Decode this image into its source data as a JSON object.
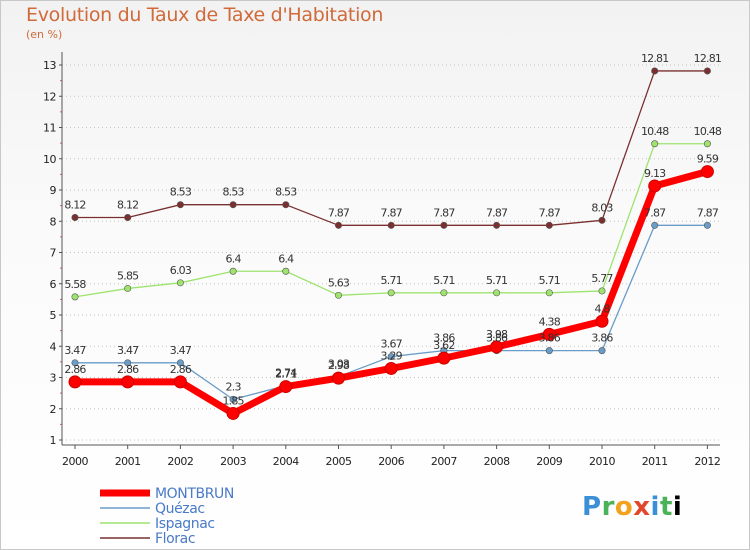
{
  "chart_data": {
    "type": "line",
    "title": "Evolution du Taux de Taxe d'Habitation",
    "subtitle": "(en %)",
    "x": [
      "2000",
      "2001",
      "2002",
      "2003",
      "2004",
      "2005",
      "2006",
      "2007",
      "2008",
      "2009",
      "2010",
      "2011",
      "2012"
    ],
    "ylim": [
      1,
      13
    ],
    "yticks": [
      "1",
      "2",
      "3",
      "4",
      "5",
      "6",
      "7",
      "8",
      "9",
      "10",
      "11",
      "12",
      "13"
    ],
    "grid": "horizontal-dotted",
    "legend_position": "bottom-left",
    "series": [
      {
        "name": "MONTBRUN",
        "color": "#ff0000",
        "values": [
          2.86,
          2.86,
          2.86,
          1.85,
          2.71,
          2.98,
          3.29,
          3.62,
          3.98,
          4.38,
          4.8,
          9.13,
          9.59
        ],
        "labels": [
          "2.86",
          "2.86",
          "2.86",
          "1.85",
          "2.71",
          "2.98",
          "3.29",
          "3.62",
          "3.98",
          "4.38",
          "4.8",
          "9.13",
          "9.59"
        ]
      },
      {
        "name": "Quézac",
        "color": "#6a9cc8",
        "values": [
          3.47,
          3.47,
          3.47,
          2.3,
          2.74,
          3.03,
          3.67,
          3.86,
          3.86,
          3.86,
          3.86,
          7.87,
          7.87
        ],
        "labels": [
          "3.47",
          "3.47",
          "3.47",
          "2.3",
          "2.74",
          "3.03",
          "3.67",
          "3.86",
          "3.86",
          "3.86",
          "3.86",
          "7.87",
          "7.87"
        ]
      },
      {
        "name": "Ispagnac",
        "color": "#9ee36e",
        "values": [
          5.58,
          5.85,
          6.03,
          6.4,
          6.4,
          5.63,
          5.71,
          5.71,
          5.71,
          5.71,
          5.77,
          10.48,
          10.48
        ],
        "labels": [
          "5.58",
          "5.85",
          "6.03",
          "6.4",
          "6.4",
          "5.63",
          "5.71",
          "5.71",
          "5.71",
          "5.71",
          "5.77",
          "10.48",
          "10.48"
        ]
      },
      {
        "name": "Florac",
        "color": "#7a3030",
        "values": [
          8.12,
          8.12,
          8.53,
          8.53,
          8.53,
          7.87,
          7.87,
          7.87,
          7.87,
          7.87,
          8.03,
          12.81,
          12.81
        ],
        "labels": [
          "8.12",
          "8.12",
          "8.53",
          "8.53",
          "8.53",
          "7.87",
          "7.87",
          "7.87",
          "7.87",
          "7.87",
          "8.03",
          "12.81",
          "12.81"
        ]
      }
    ]
  },
  "logo": {
    "letters": [
      "P",
      "r",
      "o",
      "x",
      "i",
      "t",
      "i"
    ]
  }
}
